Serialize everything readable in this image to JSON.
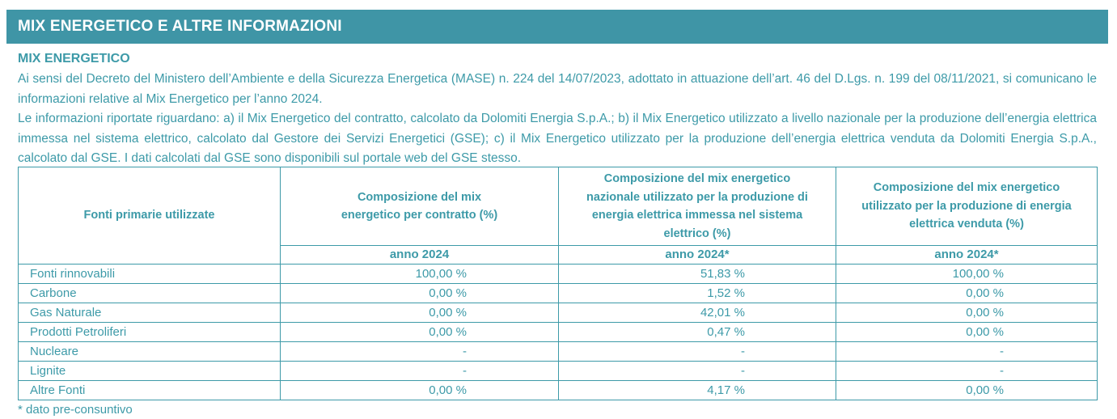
{
  "banner": {
    "title": "MIX ENERGETICO E ALTRE INFORMAZIONI"
  },
  "section": {
    "title": "MIX ENERGETICO"
  },
  "paragraphs": {
    "p1": "Ai sensi del Decreto del Ministero dell’Ambiente e della Sicurezza Energetica (MASE) n. 224 del 14/07/2023, adottato in attuazione dell’art. 46 del D.Lgs. n. 199 del 08/11/2021, si comunicano le informazioni relative al Mix Energetico per l’anno 2024.",
    "p2": "Le informazioni riportate riguardano: a) il Mix Energetico del contratto, calcolato da Dolomiti Energia S.p.A.; b) il Mix Energetico utilizzato a livello nazionale per la produzione dell’energia elettrica immessa nel sistema elettrico, calcolato dal Gestore dei Servizi Energetici (GSE); c) il Mix Energetico utilizzato per la produzione dell’energia elettrica venduta da Dolomiti Energia S.p.A., calcolato dal GSE. I dati calcolati dal GSE sono disponibili sul portale web del GSE stesso."
  },
  "table": {
    "headers": {
      "col1": "Fonti primarie utilizzate",
      "col2": "Composizione del mix energetico per contratto (%)",
      "col3": "Composizione del mix energetico nazionale utilizzato per la produzione di energia elettrica immessa nel sistema elettrico (%)",
      "col4": "Composizione del mix energetico utilizzato per la produzione di energia elettrica venduta (%)"
    },
    "years": {
      "col2": "anno 2024",
      "col3": "anno 2024*",
      "col4": "anno 2024*"
    },
    "rows": [
      {
        "source": "Fonti rinnovabili",
        "contratto": "100,00 %",
        "nazionale": "51,83 %",
        "venduta": "100,00 %"
      },
      {
        "source": "Carbone",
        "contratto": "0,00 %",
        "nazionale": "1,52 %",
        "venduta": "0,00 %"
      },
      {
        "source": "Gas Naturale",
        "contratto": "0,00 %",
        "nazionale": "42,01 %",
        "venduta": "0,00 %"
      },
      {
        "source": "Prodotti Petroliferi",
        "contratto": "0,00 %",
        "nazionale": "0,47 %",
        "venduta": "0,00 %"
      },
      {
        "source": "Nucleare",
        "contratto": "-",
        "nazionale": "-",
        "venduta": "-"
      },
      {
        "source": "Lignite",
        "contratto": "-",
        "nazionale": "-",
        "venduta": "-"
      },
      {
        "source": "Altre Fonti",
        "contratto": "0,00 %",
        "nazionale": "4,17 %",
        "venduta": "0,00 %"
      }
    ]
  },
  "footnote": "* dato pre-consuntivo",
  "colors": {
    "banner_bg": "#3f95a6",
    "text": "#3d9aa8",
    "border": "#3d9aa8"
  }
}
